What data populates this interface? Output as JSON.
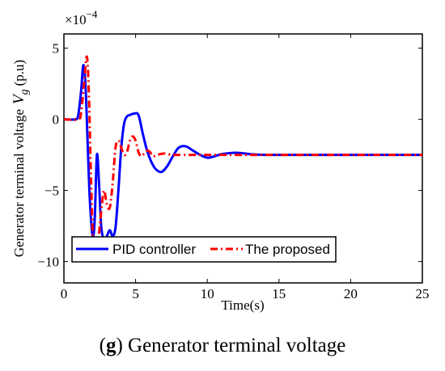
{
  "chart_data": {
    "type": "line",
    "xlabel": "Time(s)",
    "ylabel_main": "Generator terminal voltage",
    "ylabel_symbol": "V",
    "ylabel_subscript": "g",
    "ylabel_unit": "(p.u)",
    "y_multiplier": "×10",
    "y_multiplier_exp": "−4",
    "xlim": [
      0,
      25
    ],
    "ylim": [
      -11.5,
      6
    ],
    "x_ticks": [
      0,
      5,
      10,
      15,
      20,
      25
    ],
    "y_ticks": [
      5,
      0,
      -5,
      -10
    ],
    "y_tick_labels": [
      "5",
      "0",
      "−5",
      "−10"
    ],
    "grid": false,
    "legend_position": "bottom-left",
    "series": [
      {
        "name": "PID controller",
        "color": "#0000ff",
        "style": "solid",
        "x": [
          0,
          0.8,
          1.0,
          1.2,
          1.35,
          1.5,
          1.65,
          1.8,
          2.0,
          2.15,
          2.3,
          2.45,
          2.6,
          2.8,
          3.0,
          3.2,
          3.4,
          3.6,
          3.8,
          4.0,
          4.2,
          4.4,
          4.6,
          4.9,
          5.2,
          5.5,
          5.8,
          6.1,
          6.4,
          6.8,
          7.2,
          7.6,
          8.0,
          8.5,
          9.0,
          9.5,
          10.0,
          10.5,
          11.0,
          12.0,
          13.0,
          14.0,
          15.0,
          16.0,
          18.0,
          20.0,
          22.0,
          25.0
        ],
        "y": [
          0,
          0,
          0.3,
          2.0,
          3.8,
          2.5,
          -1.5,
          -5.5,
          -8.2,
          -7.0,
          -2.5,
          -4.5,
          -7.5,
          -8.5,
          -8.2,
          -7.8,
          -8.2,
          -7.6,
          -5.0,
          -2.0,
          -0.3,
          0.2,
          0.3,
          0.4,
          0.3,
          -1.0,
          -2.2,
          -3.0,
          -3.5,
          -3.7,
          -3.3,
          -2.6,
          -2.0,
          -1.9,
          -2.2,
          -2.5,
          -2.7,
          -2.6,
          -2.45,
          -2.35,
          -2.45,
          -2.5,
          -2.5,
          -2.5,
          -2.5,
          -2.5,
          -2.5,
          -2.5
        ]
      },
      {
        "name": "The proposed",
        "color": "#ff0000",
        "style": "dashdot",
        "x": [
          0,
          1.0,
          1.2,
          1.4,
          1.6,
          1.75,
          1.9,
          2.05,
          2.2,
          2.35,
          2.5,
          2.65,
          2.8,
          3.0,
          3.2,
          3.4,
          3.6,
          3.8,
          4.0,
          4.2,
          4.4,
          4.6,
          4.8,
          5.0,
          5.2,
          5.4,
          5.6,
          5.8,
          6.0,
          6.2,
          6.5,
          7.0,
          7.5,
          8.0,
          9.0,
          10.0,
          12.0,
          15.0,
          20.0,
          25.0
        ],
        "y": [
          0,
          0,
          0.5,
          2.5,
          4.4,
          1.5,
          -4.5,
          -9.0,
          -9.8,
          -9.0,
          -7.5,
          -6.0,
          -5.0,
          -6.0,
          -6.2,
          -4.5,
          -2.0,
          -1.5,
          -2.0,
          -2.5,
          -2.3,
          -1.5,
          -1.2,
          -1.5,
          -2.3,
          -2.6,
          -2.4,
          -2.2,
          -2.3,
          -2.6,
          -2.5,
          -2.4,
          -2.5,
          -2.5,
          -2.5,
          -2.5,
          -2.5,
          -2.5,
          -2.5,
          -2.5
        ]
      }
    ]
  },
  "caption": {
    "letter": "g",
    "text": "Generator terminal voltage"
  }
}
